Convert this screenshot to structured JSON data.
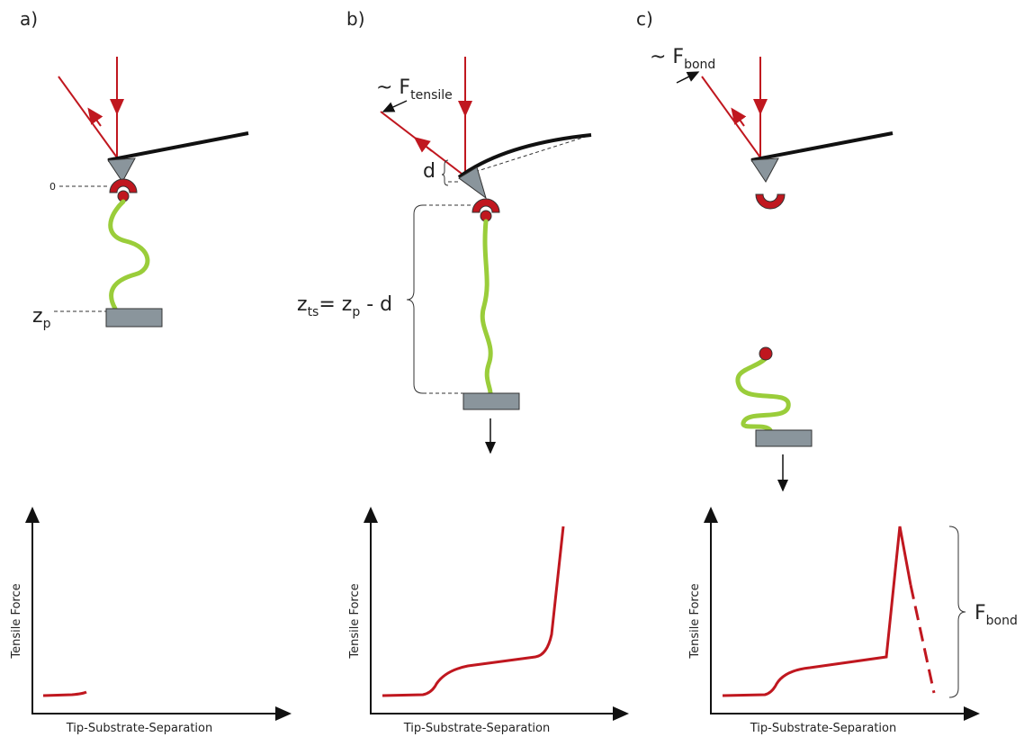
{
  "panels": [
    {
      "label": "a)",
      "zero_label": "0",
      "z_label": {
        "main": "z",
        "sub": "p"
      },
      "y_axis": "Tensile Force",
      "x_axis": "Tip-Substrate-Separation"
    },
    {
      "label": "b)",
      "force_label": {
        "main": "~ F",
        "sub": "tensile"
      },
      "d_label": "d",
      "formula": {
        "z": "z",
        "ts": "ts",
        "eq": "= z",
        "p": "p",
        "minus": " - d"
      },
      "y_axis": "Tensile Force",
      "x_axis": "Tip-Substrate-Separation"
    },
    {
      "label": "c)",
      "force_label": {
        "main": "~ F",
        "sub": "bond"
      },
      "bond_label": {
        "main": "F",
        "sub": "bond"
      },
      "y_axis": "Tensile Force",
      "x_axis": "Tip-Substrate-Separation"
    }
  ]
}
